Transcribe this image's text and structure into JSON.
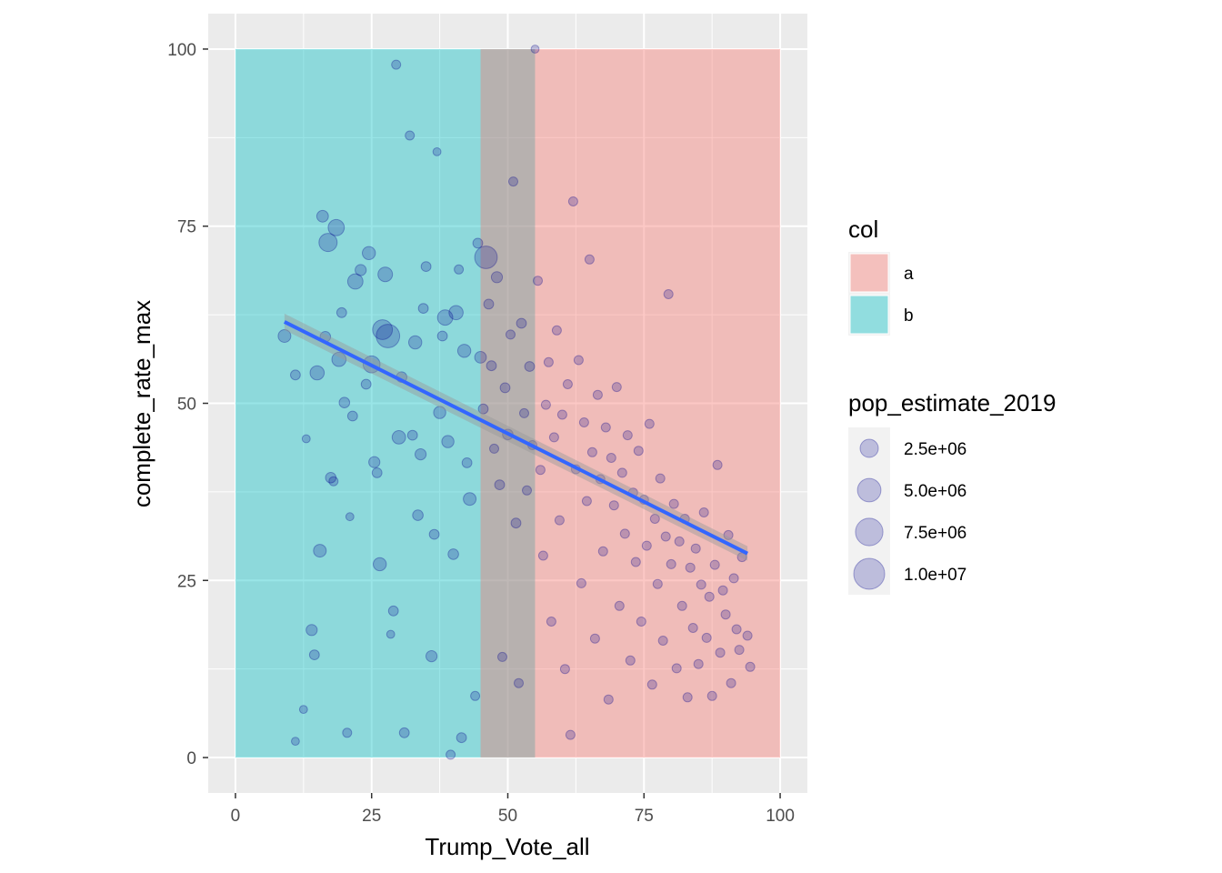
{
  "chart_data": {
    "type": "scatter",
    "xlabel": "Trump_Vote_all",
    "ylabel": "complete_rate_max",
    "xlim": [
      -5,
      105
    ],
    "ylim": [
      -5,
      105
    ],
    "x_ticks": [
      "0",
      "25",
      "50",
      "75",
      "100"
    ],
    "y_ticks": [
      "0",
      "25",
      "50",
      "75",
      "100"
    ],
    "grid": true,
    "panel_background": "#ebebeb",
    "point_color": "#00008b",
    "fit_line": {
      "color": "#3366ff",
      "x": [
        9,
        94
      ],
      "y": [
        61.5,
        28.8
      ],
      "band_color": "#999999"
    },
    "regions": [
      {
        "label": "b",
        "x": [
          0,
          55
        ],
        "y": [
          0,
          100
        ],
        "color": "#00bfc4"
      },
      {
        "label": "a",
        "x": [
          45,
          100
        ],
        "y": [
          0,
          100
        ],
        "color": "#f8766d"
      }
    ],
    "legend": {
      "position": "right",
      "fill": {
        "title": "col",
        "items": [
          {
            "label": "a",
            "color": "#f8766d"
          },
          {
            "label": "b",
            "color": "#00bfc4"
          }
        ]
      },
      "size": {
        "title": "pop_estimate_2019",
        "items": [
          {
            "label": "2.5e+06",
            "value": 2500000
          },
          {
            "label": "5.0e+06",
            "value": 5000000
          },
          {
            "label": "7.5e+06",
            "value": 7500000
          },
          {
            "label": "1.0e+07",
            "value": 10000000
          }
        ]
      }
    },
    "points": [
      [
        9,
        59.5,
        800000
      ],
      [
        11,
        54,
        300000
      ],
      [
        11,
        2.3,
        100000
      ],
      [
        12.5,
        6.8,
        100000
      ],
      [
        13,
        45,
        100000
      ],
      [
        14,
        18,
        500000
      ],
      [
        14.5,
        14.5,
        300000
      ],
      [
        15,
        54.3,
        1200000
      ],
      [
        15.5,
        29.2,
        800000
      ],
      [
        16,
        76.4,
        600000
      ],
      [
        16.5,
        59.4,
        400000
      ],
      [
        17,
        72.7,
        2500000
      ],
      [
        17.5,
        39.5,
        400000
      ],
      [
        18,
        39,
        200000
      ],
      [
        18.5,
        74.8,
        1800000
      ],
      [
        19,
        56.2,
        1200000
      ],
      [
        19.5,
        62.8,
        300000
      ],
      [
        20,
        50.1,
        400000
      ],
      [
        20.5,
        3.5,
        200000
      ],
      [
        21,
        34,
        100000
      ],
      [
        21.5,
        48.2,
        300000
      ],
      [
        22,
        67.2,
        1500000
      ],
      [
        23,
        68.8,
        500000
      ],
      [
        24,
        52.7,
        300000
      ],
      [
        24.5,
        71.2,
        900000
      ],
      [
        25,
        55.5,
        2000000
      ],
      [
        25.5,
        41.7,
        500000
      ],
      [
        26,
        40.2,
        300000
      ],
      [
        26.5,
        27.3,
        900000
      ],
      [
        27,
        60.4,
        3200000
      ],
      [
        27.5,
        68.2,
        1300000
      ],
      [
        28,
        59.5,
        5000000
      ],
      [
        28.5,
        17.4,
        100000
      ],
      [
        29,
        20.7,
        300000
      ],
      [
        29.5,
        97.8,
        200000
      ],
      [
        30,
        45.2,
        1000000
      ],
      [
        30.5,
        53.7,
        400000
      ],
      [
        31,
        3.5,
        300000
      ],
      [
        32,
        87.8,
        200000
      ],
      [
        32.5,
        45.5,
        300000
      ],
      [
        33,
        58.6,
        900000
      ],
      [
        33.5,
        34.2,
        400000
      ],
      [
        34,
        42.8,
        500000
      ],
      [
        34.5,
        63.4,
        300000
      ],
      [
        35,
        69.3,
        300000
      ],
      [
        36,
        14.3,
        500000
      ],
      [
        36.5,
        31.5,
        300000
      ],
      [
        37,
        85.5,
        100000
      ],
      [
        37.5,
        48.7,
        700000
      ],
      [
        38,
        59.5,
        300000
      ],
      [
        38.5,
        62.1,
        1500000
      ],
      [
        39,
        44.6,
        700000
      ],
      [
        39.5,
        0.4,
        200000
      ],
      [
        40,
        28.7,
        400000
      ],
      [
        40.5,
        62.8,
        1200000
      ],
      [
        41,
        68.9,
        200000
      ],
      [
        41.5,
        2.8,
        300000
      ],
      [
        42,
        57.4,
        900000
      ],
      [
        42.5,
        41.6,
        300000
      ],
      [
        43,
        36.5,
        800000
      ],
      [
        44,
        8.7,
        200000
      ],
      [
        44.5,
        72.6,
        300000
      ],
      [
        45,
        56.5,
        600000
      ],
      [
        45.5,
        49.2,
        300000
      ],
      [
        46,
        70.6,
        4500000
      ],
      [
        46.5,
        64,
        300000
      ],
      [
        47,
        55.3,
        300000
      ],
      [
        47.5,
        43.6,
        200000
      ],
      [
        48,
        67.8,
        500000
      ],
      [
        48.5,
        38.5,
        300000
      ],
      [
        49,
        14.2,
        200000
      ],
      [
        49.5,
        52.2,
        300000
      ],
      [
        50,
        45.6,
        400000
      ],
      [
        50.5,
        59.7,
        200000
      ],
      [
        51,
        81.3,
        200000
      ],
      [
        51.5,
        33.1,
        300000
      ],
      [
        52,
        10.5,
        200000
      ],
      [
        52.5,
        61.3,
        300000
      ],
      [
        53,
        48.6,
        200000
      ],
      [
        53.5,
        37.7,
        200000
      ],
      [
        54,
        55.2,
        300000
      ],
      [
        54.5,
        44.1,
        200000
      ],
      [
        55,
        100,
        100000
      ],
      [
        55.5,
        67.3,
        200000
      ],
      [
        56,
        40.6,
        200000
      ],
      [
        56.5,
        28.5,
        200000
      ],
      [
        57,
        49.8,
        200000
      ],
      [
        57.5,
        55.8,
        200000
      ],
      [
        58,
        19.2,
        200000
      ],
      [
        58.5,
        45.2,
        200000
      ],
      [
        59,
        60.3,
        200000
      ],
      [
        59.5,
        33.5,
        200000
      ],
      [
        60,
        48.4,
        200000
      ],
      [
        60.5,
        12.5,
        200000
      ],
      [
        61,
        52.7,
        200000
      ],
      [
        61.5,
        3.2,
        200000
      ],
      [
        62,
        78.5,
        200000
      ],
      [
        62.5,
        40.7,
        200000
      ],
      [
        63,
        56.1,
        200000
      ],
      [
        63.5,
        24.6,
        200000
      ],
      [
        64,
        47.3,
        200000
      ],
      [
        64.5,
        36.2,
        200000
      ],
      [
        65,
        70.3,
        200000
      ],
      [
        65.5,
        43.1,
        200000
      ],
      [
        66,
        16.8,
        200000
      ],
      [
        66.5,
        51.2,
        200000
      ],
      [
        67,
        39.3,
        200000
      ],
      [
        67.5,
        29.1,
        200000
      ],
      [
        68,
        46.6,
        200000
      ],
      [
        68.5,
        8.2,
        200000
      ],
      [
        69,
        42.3,
        200000
      ],
      [
        69.5,
        35.6,
        200000
      ],
      [
        70,
        52.3,
        200000
      ],
      [
        70.5,
        21.4,
        200000
      ],
      [
        71,
        40.2,
        200000
      ],
      [
        71.5,
        31.6,
        200000
      ],
      [
        72,
        45.5,
        200000
      ],
      [
        72.5,
        13.7,
        200000
      ],
      [
        73,
        37.4,
        200000
      ],
      [
        73.5,
        27.6,
        200000
      ],
      [
        74,
        43.3,
        200000
      ],
      [
        74.5,
        19.2,
        200000
      ],
      [
        75,
        36.4,
        200000
      ],
      [
        75.5,
        29.9,
        200000
      ],
      [
        76,
        47.1,
        200000
      ],
      [
        76.5,
        10.3,
        200000
      ],
      [
        77,
        33.7,
        200000
      ],
      [
        77.5,
        24.5,
        200000
      ],
      [
        78,
        39.4,
        200000
      ],
      [
        78.5,
        16.5,
        200000
      ],
      [
        79,
        31.2,
        200000
      ],
      [
        79.5,
        65.4,
        200000
      ],
      [
        80,
        27.3,
        200000
      ],
      [
        80.5,
        35.8,
        200000
      ],
      [
        81,
        12.6,
        200000
      ],
      [
        81.5,
        30.5,
        200000
      ],
      [
        82,
        21.4,
        200000
      ],
      [
        82.5,
        33.7,
        200000
      ],
      [
        83,
        8.5,
        200000
      ],
      [
        83.5,
        26.8,
        200000
      ],
      [
        84,
        18.3,
        200000
      ],
      [
        84.5,
        29.5,
        200000
      ],
      [
        85,
        13.2,
        200000
      ],
      [
        85.5,
        24.4,
        200000
      ],
      [
        86,
        34.6,
        200000
      ],
      [
        86.5,
        16.9,
        200000
      ],
      [
        87,
        22.7,
        200000
      ],
      [
        87.5,
        8.7,
        200000
      ],
      [
        88,
        27.2,
        200000
      ],
      [
        88.5,
        41.3,
        200000
      ],
      [
        89,
        14.8,
        200000
      ],
      [
        89.5,
        23.6,
        200000
      ],
      [
        90,
        20.2,
        200000
      ],
      [
        90.5,
        31.4,
        200000
      ],
      [
        91,
        10.5,
        200000
      ],
      [
        91.5,
        25.3,
        200000
      ],
      [
        92,
        18.1,
        200000
      ],
      [
        92.5,
        15.2,
        200000
      ],
      [
        93,
        28.3,
        200000
      ],
      [
        94,
        17.2,
        200000
      ],
      [
        94.5,
        12.8,
        200000
      ]
    ]
  }
}
